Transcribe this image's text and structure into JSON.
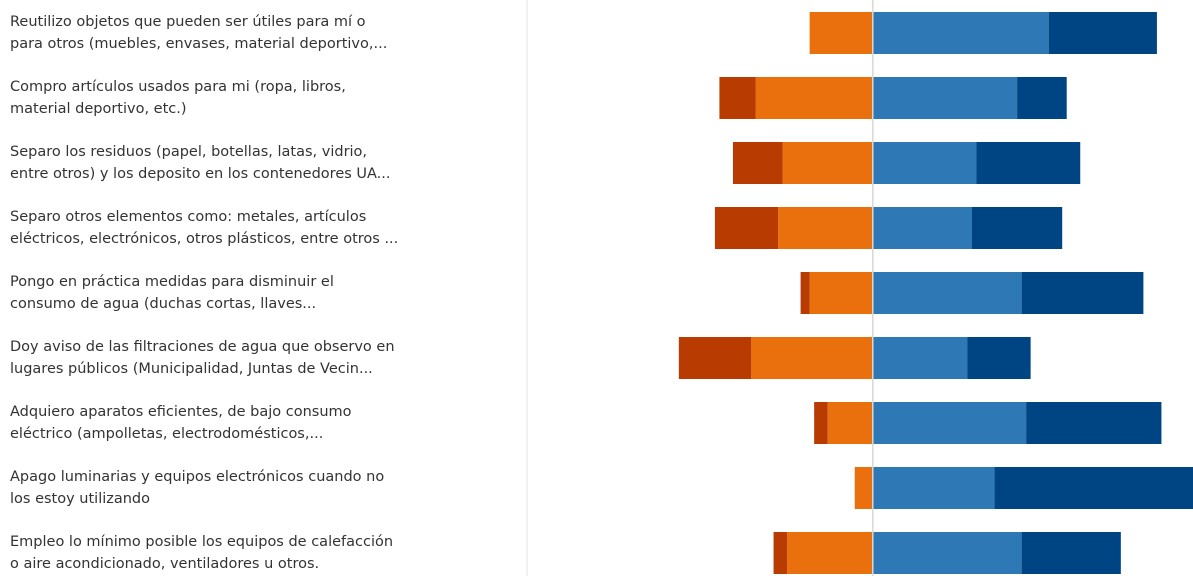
{
  "chart_data": {
    "type": "diverging-bar",
    "categories": [
      [
        "Reutilizo objetos que pueden ser útiles para mí o",
        "para otros (muebles, envases, material deportivo,..."
      ],
      [
        "Compro artículos usados para mi (ropa, libros,",
        "material deportivo, etc.)"
      ],
      [
        "Separo los residuos (papel, botellas, latas, vidrio,",
        "entre otros) y los deposito en los contenedores UA..."
      ],
      [
        "Separo otros elementos como: metales, artículos",
        "eléctricos, electrónicos, otros plásticos, entre otros ..."
      ],
      [
        "Pongo en práctica medidas para disminuir el",
        "consumo de agua (duchas cortas, llaves..."
      ],
      [
        "Doy aviso de las filtraciones de agua que observo en",
        "lugares públicos     (Municipalidad, Juntas de Vecin..."
      ],
      [
        "Adquiero aparatos eficientes, de bajo consumo",
        "eléctrico (ampolletas, electrodomésticos,..."
      ],
      [
        "Apago luminarias y equipos electrónicos cuando no",
        "los estoy utilizando"
      ],
      [
        "Empleo lo mínimo posible los equipos de calefacción",
        "o aire acondicionado, ventiladores u otros."
      ]
    ],
    "series": [
      {
        "color": "#b83c02",
        "values": [
          0,
          -8,
          -11,
          -14,
          -2,
          -16,
          -3,
          0,
          -3
        ]
      },
      {
        "color": "#ea700d",
        "values": [
          -14,
          -26,
          -20,
          -21,
          -14,
          -27,
          -10,
          -4,
          -19
        ]
      },
      {
        "color": "#2e79b5",
        "values": [
          39,
          32,
          23,
          22,
          33,
          21,
          34,
          27,
          33
        ]
      },
      {
        "color": "#004583",
        "values": [
          24,
          11,
          23,
          20,
          27,
          14,
          30,
          44,
          22
        ]
      }
    ],
    "xlim": [
      -76,
      71
    ]
  }
}
